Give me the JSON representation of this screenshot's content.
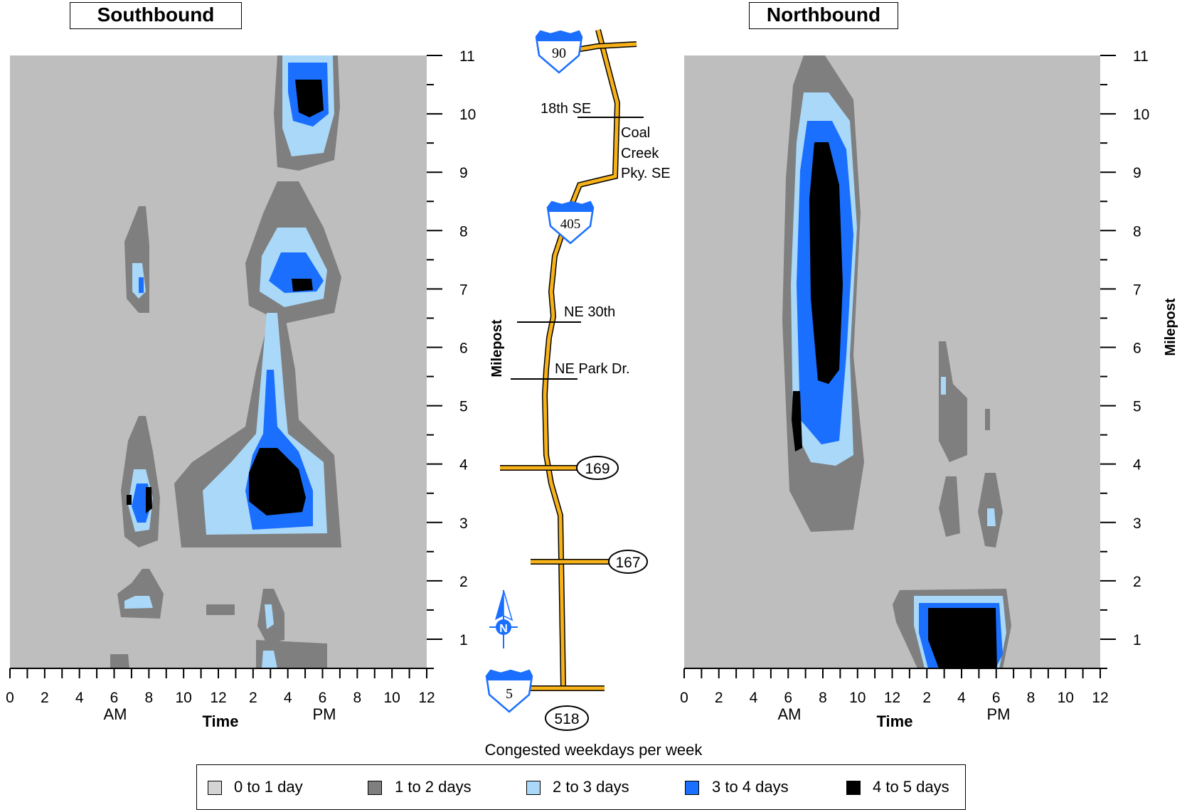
{
  "chart_data": [
    {
      "type": "heatmap",
      "title": "Southbound",
      "xlabel": "Time",
      "ylabel": "Milepost",
      "x_ticks": [
        "0",
        "2",
        "4",
        "6",
        "8",
        "10",
        "12",
        "2",
        "4",
        "6",
        "8",
        "10",
        "12"
      ],
      "x_period_labels": [
        "AM",
        "PM"
      ],
      "y_ticks": [
        "1",
        "2",
        "3",
        "4",
        "5",
        "6",
        "7",
        "8",
        "9",
        "10",
        "11"
      ],
      "xlim_hours": [
        0,
        24
      ],
      "ylim_milepost": [
        0.5,
        11
      ],
      "congestion_regions": [
        {
          "level": "4 to 5 days",
          "time_hours": [
            14.9,
            16.5
          ],
          "milepost": [
            10.3,
            10.6
          ]
        },
        {
          "level": "4 to 5 days",
          "time_hours": [
            14.0,
            17.0
          ],
          "milepost": [
            3.3,
            4.3
          ]
        },
        {
          "level": "4 to 5 days",
          "time_hours": [
            6.5,
            8.0
          ],
          "milepost": [
            3.3,
            3.8
          ]
        },
        {
          "level": "4 to 5 days",
          "time_hours": [
            16.0,
            17.0
          ],
          "milepost": [
            7.0,
            7.1
          ]
        },
        {
          "level": "3 to 4 days",
          "time_hours": [
            14.5,
            18.5
          ],
          "milepost": [
            6.9,
            7.7
          ]
        }
      ]
    },
    {
      "type": "heatmap",
      "title": "Northbound",
      "xlabel": "Time",
      "ylabel": "Milepost",
      "x_ticks": [
        "0",
        "2",
        "4",
        "6",
        "8",
        "10",
        "12",
        "2",
        "4",
        "6",
        "8",
        "10",
        "12"
      ],
      "x_period_labels": [
        "AM",
        "PM"
      ],
      "y_ticks": [
        "1",
        "2",
        "3",
        "4",
        "5",
        "6",
        "7",
        "8",
        "9",
        "10",
        "11"
      ],
      "xlim_hours": [
        0,
        24
      ],
      "ylim_milepost": [
        0.5,
        11
      ],
      "congestion_regions": [
        {
          "level": "4 to 5 days",
          "time_hours": [
            6.6,
            8.8
          ],
          "milepost": [
            5.5,
            9.5
          ]
        },
        {
          "level": "4 to 5 days",
          "time_hours": [
            13.6,
            18.3
          ],
          "milepost": [
            0.5,
            1.6
          ]
        },
        {
          "level": "4 to 5 days",
          "time_hours": [
            6.1,
            6.6
          ],
          "milepost": [
            4.3,
            5.3
          ]
        }
      ]
    }
  ],
  "map": {
    "highways": [
      "90",
      "405",
      "5"
    ],
    "routes": [
      "169",
      "167",
      "518"
    ],
    "streets": [
      "18th SE",
      "Coal",
      "Creek",
      "Pky. SE",
      "NE 30th",
      "NE Park Dr."
    ],
    "north_label": "N",
    "axis_label": "Milepost"
  },
  "legend": {
    "caption": "Congested weekdays per week",
    "items": [
      {
        "label": "0 to 1 day",
        "color": "#d4d4d4"
      },
      {
        "label": "1 to 2 days",
        "color": "#7f7f7f"
      },
      {
        "label": "2 to 3 days",
        "color": "#a9d8f8"
      },
      {
        "label": "3 to 4 days",
        "color": "#1a6fff"
      },
      {
        "label": "4 to 5 days",
        "color": "#000000"
      }
    ]
  },
  "colors": {
    "background": "#bebebe",
    "gray": "#7f7f7f",
    "light_blue": "#a9d8f8",
    "blue": "#1a6fff",
    "black": "#000000",
    "road": "#f7b21a"
  }
}
